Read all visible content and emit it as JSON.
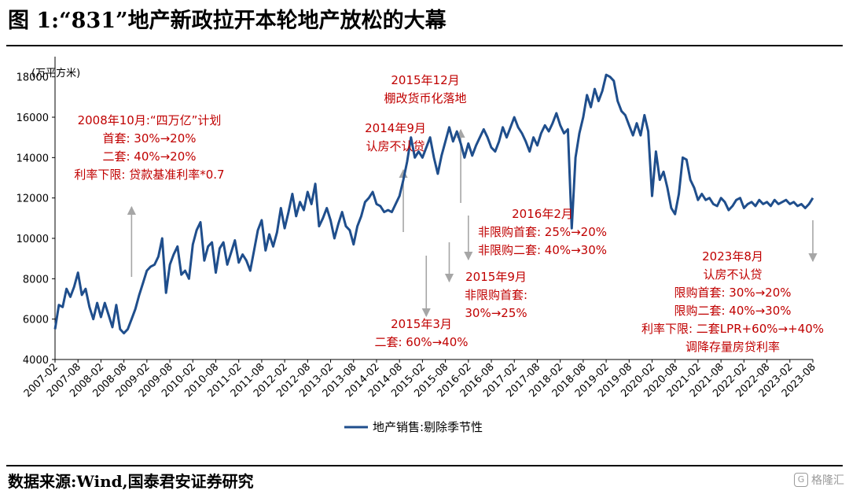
{
  "header": {
    "title": "图 1:“831”地产新政拉开本轮地产放松的大幕"
  },
  "footer": {
    "source": "数据来源:Wind,国泰君安证券研究",
    "watermark": "格隆汇"
  },
  "colors": {
    "series": "#1f4e8c",
    "annotation": "#c00000",
    "arrow": "#a6a6a6"
  },
  "chart_data": {
    "type": "line",
    "unit": "(万平方米)",
    "ylim": [
      4000,
      19000
    ],
    "yticks": [
      4000,
      6000,
      8000,
      10000,
      12000,
      14000,
      16000,
      18000
    ],
    "x_range": [
      "2007-02",
      "2023-08"
    ],
    "xticks": [
      "2007-02",
      "2007-08",
      "2008-02",
      "2008-08",
      "2009-02",
      "2009-08",
      "2010-02",
      "2010-08",
      "2011-02",
      "2011-08",
      "2012-02",
      "2012-08",
      "2013-02",
      "2013-08",
      "2014-02",
      "2014-08",
      "2015-02",
      "2015-08",
      "2016-02",
      "2016-08",
      "2017-02",
      "2017-08",
      "2018-02",
      "2018-08",
      "2019-02",
      "2019-08",
      "2020-02",
      "2020-08",
      "2021-02",
      "2021-08",
      "2022-02",
      "2022-08",
      "2023-02",
      "2023-08"
    ],
    "grid": false,
    "legend": "bottom-center",
    "series": [
      {
        "name": "地产销售:剔除季节性",
        "points": [
          [
            "2007-02",
            5500
          ],
          [
            "2007-03",
            6700
          ],
          [
            "2007-04",
            6600
          ],
          [
            "2007-05",
            7500
          ],
          [
            "2007-06",
            7100
          ],
          [
            "2007-07",
            7600
          ],
          [
            "2007-08",
            8300
          ],
          [
            "2007-09",
            7200
          ],
          [
            "2007-10",
            7500
          ],
          [
            "2007-11",
            6600
          ],
          [
            "2007-12",
            6000
          ],
          [
            "2008-01",
            6800
          ],
          [
            "2008-02",
            6100
          ],
          [
            "2008-03",
            6800
          ],
          [
            "2008-04",
            6200
          ],
          [
            "2008-05",
            5600
          ],
          [
            "2008-06",
            6700
          ],
          [
            "2008-07",
            5500
          ],
          [
            "2008-08",
            5300
          ],
          [
            "2008-09",
            5500
          ],
          [
            "2008-10",
            6000
          ],
          [
            "2008-11",
            6500
          ],
          [
            "2008-12",
            7200
          ],
          [
            "2009-01",
            7800
          ],
          [
            "2009-02",
            8400
          ],
          [
            "2009-03",
            8600
          ],
          [
            "2009-04",
            8700
          ],
          [
            "2009-05",
            9100
          ],
          [
            "2009-06",
            10000
          ],
          [
            "2009-07",
            7300
          ],
          [
            "2009-08",
            8700
          ],
          [
            "2009-09",
            9200
          ],
          [
            "2009-10",
            9600
          ],
          [
            "2009-11",
            8200
          ],
          [
            "2009-12",
            8400
          ],
          [
            "2010-01",
            8000
          ],
          [
            "2010-02",
            9700
          ],
          [
            "2010-03",
            10400
          ],
          [
            "2010-04",
            10800
          ],
          [
            "2010-05",
            8900
          ],
          [
            "2010-06",
            9600
          ],
          [
            "2010-07",
            9800
          ],
          [
            "2010-08",
            8300
          ],
          [
            "2010-09",
            9500
          ],
          [
            "2010-10",
            9800
          ],
          [
            "2010-11",
            8700
          ],
          [
            "2010-12",
            9300
          ],
          [
            "2011-01",
            9900
          ],
          [
            "2011-02",
            8800
          ],
          [
            "2011-03",
            9200
          ],
          [
            "2011-04",
            8900
          ],
          [
            "2011-05",
            8400
          ],
          [
            "2011-06",
            9400
          ],
          [
            "2011-07",
            10400
          ],
          [
            "2011-08",
            10900
          ],
          [
            "2011-09",
            9400
          ],
          [
            "2011-10",
            10200
          ],
          [
            "2011-11",
            9600
          ],
          [
            "2011-12",
            10300
          ],
          [
            "2012-01",
            11500
          ],
          [
            "2012-02",
            10500
          ],
          [
            "2012-03",
            11300
          ],
          [
            "2012-04",
            12200
          ],
          [
            "2012-05",
            11100
          ],
          [
            "2012-06",
            11800
          ],
          [
            "2012-07",
            11400
          ],
          [
            "2012-08",
            12300
          ],
          [
            "2012-09",
            11700
          ],
          [
            "2012-10",
            12700
          ],
          [
            "2012-11",
            10600
          ],
          [
            "2012-12",
            11000
          ],
          [
            "2013-01",
            11500
          ],
          [
            "2013-02",
            10900
          ],
          [
            "2013-03",
            10000
          ],
          [
            "2013-04",
            10700
          ],
          [
            "2013-05",
            11300
          ],
          [
            "2013-06",
            10600
          ],
          [
            "2013-07",
            10400
          ],
          [
            "2013-08",
            9700
          ],
          [
            "2013-09",
            10600
          ],
          [
            "2013-10",
            11100
          ],
          [
            "2013-11",
            11800
          ],
          [
            "2013-12",
            12000
          ],
          [
            "2014-01",
            12300
          ],
          [
            "2014-02",
            11700
          ],
          [
            "2014-03",
            11600
          ],
          [
            "2014-04",
            11300
          ],
          [
            "2014-05",
            11400
          ],
          [
            "2014-06",
            11300
          ],
          [
            "2014-07",
            11700
          ],
          [
            "2014-08",
            12100
          ],
          [
            "2014-09",
            12900
          ],
          [
            "2014-10",
            13800
          ],
          [
            "2014-11",
            15000
          ],
          [
            "2014-12",
            14000
          ],
          [
            "2015-01",
            14300
          ],
          [
            "2015-02",
            14000
          ],
          [
            "2015-03",
            14500
          ],
          [
            "2015-04",
            15000
          ],
          [
            "2015-05",
            14000
          ],
          [
            "2015-06",
            13200
          ],
          [
            "2015-07",
            14100
          ],
          [
            "2015-08",
            14800
          ],
          [
            "2015-09",
            15500
          ],
          [
            "2015-10",
            14800
          ],
          [
            "2015-11",
            15300
          ],
          [
            "2015-12",
            14700
          ],
          [
            "2016-01",
            14000
          ],
          [
            "2016-02",
            14700
          ],
          [
            "2016-03",
            14100
          ],
          [
            "2016-04",
            14600
          ],
          [
            "2016-05",
            15000
          ],
          [
            "2016-06",
            15400
          ],
          [
            "2016-07",
            15000
          ],
          [
            "2016-08",
            14500
          ],
          [
            "2016-09",
            14300
          ],
          [
            "2016-10",
            14800
          ],
          [
            "2016-11",
            15500
          ],
          [
            "2016-12",
            15000
          ],
          [
            "2017-01",
            15500
          ],
          [
            "2017-02",
            16000
          ],
          [
            "2017-03",
            15500
          ],
          [
            "2017-04",
            15200
          ],
          [
            "2017-05",
            14800
          ],
          [
            "2017-06",
            14300
          ],
          [
            "2017-07",
            15000
          ],
          [
            "2017-08",
            14600
          ],
          [
            "2017-09",
            15200
          ],
          [
            "2017-10",
            15600
          ],
          [
            "2017-11",
            15300
          ],
          [
            "2017-12",
            15700
          ],
          [
            "2018-01",
            16200
          ],
          [
            "2018-02",
            15600
          ],
          [
            "2018-03",
            15200
          ],
          [
            "2018-04",
            15400
          ],
          [
            "2018-05",
            10500
          ],
          [
            "2018-06",
            14000
          ],
          [
            "2018-07",
            15200
          ],
          [
            "2018-08",
            16000
          ],
          [
            "2018-09",
            17100
          ],
          [
            "2018-10",
            16500
          ],
          [
            "2018-11",
            17400
          ],
          [
            "2018-12",
            16800
          ],
          [
            "2019-01",
            17300
          ],
          [
            "2019-02",
            18100
          ],
          [
            "2019-03",
            18000
          ],
          [
            "2019-04",
            17800
          ],
          [
            "2019-05",
            16800
          ],
          [
            "2019-06",
            16300
          ],
          [
            "2019-07",
            16100
          ],
          [
            "2019-08",
            15600
          ],
          [
            "2019-09",
            15100
          ],
          [
            "2019-10",
            15700
          ],
          [
            "2019-11",
            15100
          ],
          [
            "2019-12",
            16100
          ],
          [
            "2020-01",
            15300
          ],
          [
            "2020-02",
            12100
          ],
          [
            "2020-03",
            14300
          ],
          [
            "2020-04",
            12900
          ],
          [
            "2020-05",
            13300
          ],
          [
            "2020-06",
            12500
          ],
          [
            "2020-07",
            11500
          ],
          [
            "2020-08",
            11200
          ],
          [
            "2020-09",
            12200
          ],
          [
            "2020-10",
            14000
          ],
          [
            "2020-11",
            13900
          ],
          [
            "2020-12",
            12900
          ],
          [
            "2021-01",
            12500
          ],
          [
            "2021-02",
            11900
          ],
          [
            "2021-03",
            12200
          ],
          [
            "2021-04",
            11900
          ],
          [
            "2021-05",
            12000
          ],
          [
            "2021-06",
            11700
          ],
          [
            "2021-07",
            11600
          ],
          [
            "2021-08",
            12000
          ],
          [
            "2021-09",
            11800
          ],
          [
            "2021-10",
            11400
          ],
          [
            "2021-11",
            11600
          ],
          [
            "2021-12",
            11900
          ],
          [
            "2022-01",
            12000
          ],
          [
            "2022-02",
            11500
          ],
          [
            "2022-03",
            11700
          ],
          [
            "2022-04",
            11800
          ],
          [
            "2022-05",
            11600
          ],
          [
            "2022-06",
            11900
          ],
          [
            "2022-07",
            11700
          ],
          [
            "2022-08",
            11800
          ],
          [
            "2022-09",
            11600
          ],
          [
            "2022-10",
            11900
          ],
          [
            "2022-11",
            11700
          ],
          [
            "2022-12",
            11800
          ],
          [
            "2023-01",
            11900
          ],
          [
            "2023-02",
            11700
          ],
          [
            "2023-03",
            11800
          ],
          [
            "2023-04",
            11600
          ],
          [
            "2023-05",
            11700
          ],
          [
            "2023-06",
            11500
          ],
          [
            "2023-07",
            11700
          ],
          [
            "2023-08",
            12000
          ]
        ]
      }
    ],
    "annotations": [
      {
        "date": "2008-10",
        "dir": "up",
        "lines": [
          "2008年10月:“四万亿”计划",
          "首套: 30%→20%",
          "二套: 40%→20%",
          "利率下限: 贷款基准利率*0.7"
        ]
      },
      {
        "date": "2014-09",
        "dir": "up",
        "lines": [
          "2014年9月",
          "认房不认贷"
        ]
      },
      {
        "date": "2015-03",
        "dir": "down",
        "lines": [
          "2015年3月",
          "二套: 60%→40%"
        ]
      },
      {
        "date": "2015-09",
        "dir": "down",
        "lines": [
          "2015年9月",
          "非限购首套:",
          "30%→25%"
        ]
      },
      {
        "date": "2015-12",
        "dir": "up",
        "lines": [
          "2015年12月",
          "棚改货币化落地"
        ]
      },
      {
        "date": "2016-02",
        "dir": "down",
        "lines": [
          "2016年2月",
          "非限购首套: 25%→20%",
          "非限购二套: 40%→30%"
        ]
      },
      {
        "date": "2023-08",
        "dir": "down",
        "lines": [
          "2023年8月",
          "认房不认贷",
          "限购首套: 30%→20%",
          "限购二套: 40%→30%",
          "利率下限: 二套LPR+60%→+40%",
          "调降存量房贷利率"
        ]
      }
    ]
  }
}
